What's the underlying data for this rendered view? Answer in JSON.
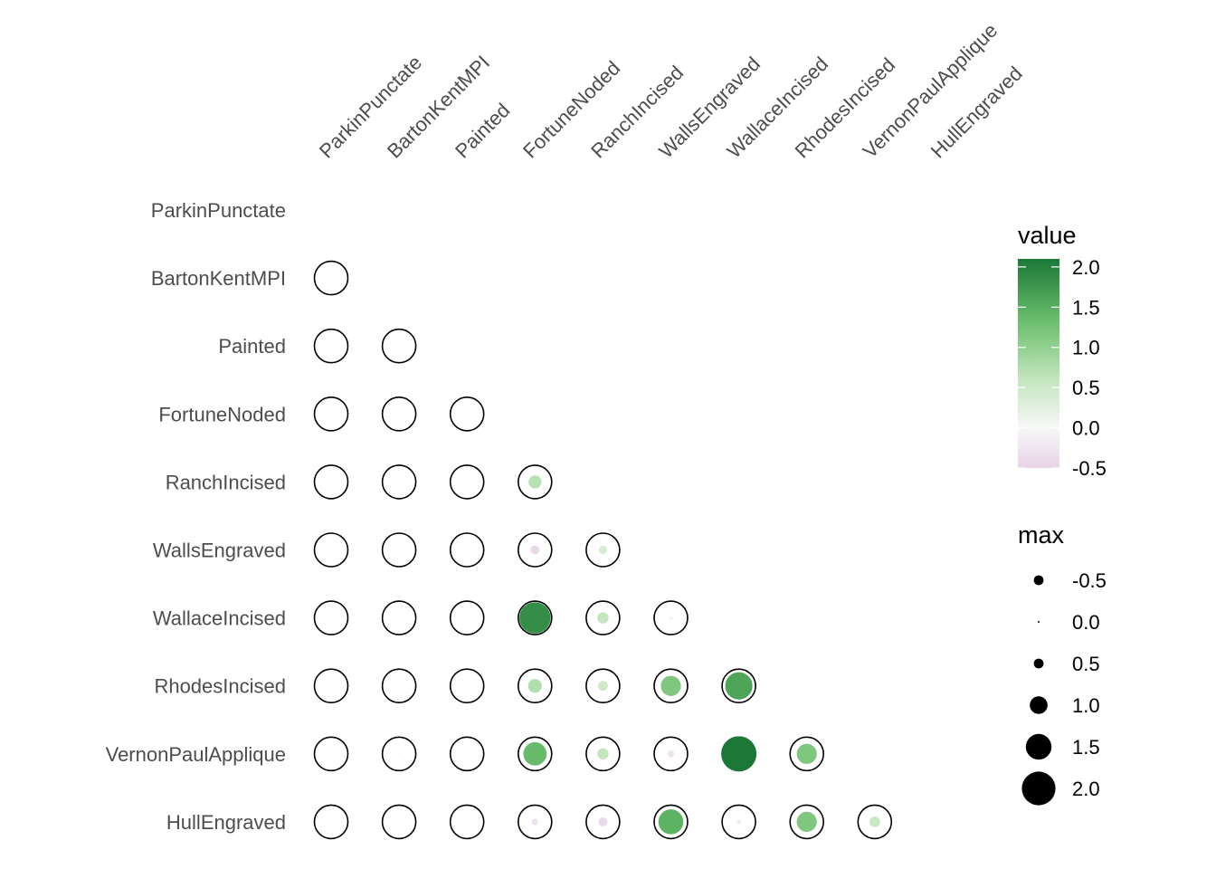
{
  "chart_data": {
    "type": "correlogram",
    "variables": [
      "ParkinPunctate",
      "BartonKentMPI",
      "Painted",
      "FortuneNoded",
      "RanchIncised",
      "WallsEngraved",
      "WallaceIncised",
      "RhodesIncised",
      "VernonPaulApplique",
      "HullEngraved"
    ],
    "cells": [
      {
        "row": "BartonKentMPI",
        "col": "ParkinPunctate",
        "value": 0.0
      },
      {
        "row": "Painted",
        "col": "ParkinPunctate",
        "value": 0.0
      },
      {
        "row": "Painted",
        "col": "BartonKentMPI",
        "value": 0.0
      },
      {
        "row": "FortuneNoded",
        "col": "ParkinPunctate",
        "value": 0.0
      },
      {
        "row": "FortuneNoded",
        "col": "BartonKentMPI",
        "value": 0.0
      },
      {
        "row": "FortuneNoded",
        "col": "Painted",
        "value": 0.0
      },
      {
        "row": "RanchIncised",
        "col": "ParkinPunctate",
        "value": 0.0
      },
      {
        "row": "RanchIncised",
        "col": "BartonKentMPI",
        "value": 0.0
      },
      {
        "row": "RanchIncised",
        "col": "Painted",
        "value": 0.0
      },
      {
        "row": "RanchIncised",
        "col": "FortuneNoded",
        "value": 0.7
      },
      {
        "row": "WallsEngraved",
        "col": "ParkinPunctate",
        "value": 0.0
      },
      {
        "row": "WallsEngraved",
        "col": "BartonKentMPI",
        "value": 0.0
      },
      {
        "row": "WallsEngraved",
        "col": "Painted",
        "value": 0.0
      },
      {
        "row": "WallsEngraved",
        "col": "FortuneNoded",
        "value": -0.45
      },
      {
        "row": "WallsEngraved",
        "col": "RanchIncised",
        "value": 0.4
      },
      {
        "row": "WallaceIncised",
        "col": "ParkinPunctate",
        "value": 0.0
      },
      {
        "row": "WallaceIncised",
        "col": "BartonKentMPI",
        "value": 0.0
      },
      {
        "row": "WallaceIncised",
        "col": "Painted",
        "value": 0.0
      },
      {
        "row": "WallaceIncised",
        "col": "FortuneNoded",
        "value": 1.85
      },
      {
        "row": "WallaceIncised",
        "col": "RanchIncised",
        "value": 0.6
      },
      {
        "row": "WallaceIncised",
        "col": "WallsEngraved",
        "value": 0.1
      },
      {
        "row": "RhodesIncised",
        "col": "ParkinPunctate",
        "value": 0.0
      },
      {
        "row": "RhodesIncised",
        "col": "BartonKentMPI",
        "value": 0.0
      },
      {
        "row": "RhodesIncised",
        "col": "Painted",
        "value": 0.0
      },
      {
        "row": "RhodesIncised",
        "col": "FortuneNoded",
        "value": 0.75
      },
      {
        "row": "RhodesIncised",
        "col": "RanchIncised",
        "value": 0.5
      },
      {
        "row": "RhodesIncised",
        "col": "WallsEngraved",
        "value": 1.15
      },
      {
        "row": "RhodesIncised",
        "col": "WallaceIncised",
        "value": 1.6
      },
      {
        "row": "VernonPaulApplique",
        "col": "ParkinPunctate",
        "value": 0.0
      },
      {
        "row": "VernonPaulApplique",
        "col": "BartonKentMPI",
        "value": 0.0
      },
      {
        "row": "VernonPaulApplique",
        "col": "Painted",
        "value": 0.0
      },
      {
        "row": "VernonPaulApplique",
        "col": "FortuneNoded",
        "value": 1.35
      },
      {
        "row": "VernonPaulApplique",
        "col": "RanchIncised",
        "value": 0.6
      },
      {
        "row": "VernonPaulApplique",
        "col": "WallsEngraved",
        "value": -0.3
      },
      {
        "row": "VernonPaulApplique",
        "col": "WallaceIncised",
        "value": 2.1
      },
      {
        "row": "VernonPaulApplique",
        "col": "RhodesIncised",
        "value": 1.15
      },
      {
        "row": "HullEngraved",
        "col": "ParkinPunctate",
        "value": 0.0
      },
      {
        "row": "HullEngraved",
        "col": "BartonKentMPI",
        "value": 0.0
      },
      {
        "row": "HullEngraved",
        "col": "Painted",
        "value": 0.0
      },
      {
        "row": "HullEngraved",
        "col": "FortuneNoded",
        "value": -0.3
      },
      {
        "row": "HullEngraved",
        "col": "RanchIncised",
        "value": -0.45
      },
      {
        "row": "HullEngraved",
        "col": "WallsEngraved",
        "value": 1.45
      },
      {
        "row": "HullEngraved",
        "col": "WallaceIncised",
        "value": 0.15
      },
      {
        "row": "HullEngraved",
        "col": "RhodesIncised",
        "value": 1.15
      },
      {
        "row": "HullEngraved",
        "col": "VernonPaulApplique",
        "value": 0.55
      }
    ],
    "color_legend": {
      "title": "value",
      "range": [
        -0.5,
        2.1
      ],
      "breaks": [
        2.0,
        1.5,
        1.0,
        0.5,
        0.0,
        -0.5
      ],
      "labels": [
        "2.0",
        "1.5",
        "1.0",
        "0.5",
        "0.0",
        "-0.5"
      ],
      "low_color": "#e7d4e8",
      "mid_color": "#f7f7f7",
      "high_color": "#1b7837"
    },
    "size_legend": {
      "title": "max",
      "breaks": [
        -0.5,
        0.0,
        0.5,
        1.0,
        1.5,
        2.0
      ],
      "labels": [
        "-0.5",
        "0.0",
        "0.5",
        "1.0",
        "1.5",
        "2.0"
      ]
    },
    "outline_color": "#000000",
    "grid": false
  }
}
